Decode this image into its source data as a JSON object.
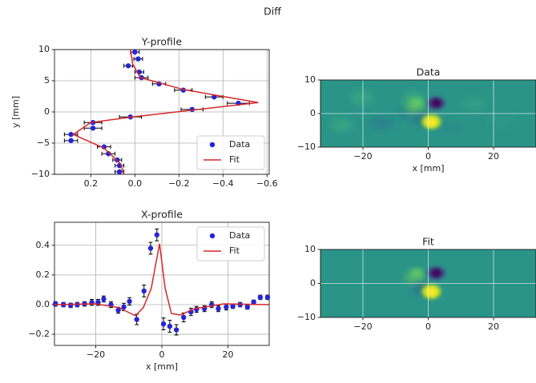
{
  "suptitle": "Diff",
  "chart_data": [
    {
      "type": "profile",
      "title": "Y-profile",
      "ylabel": "y [mm]",
      "xlim": [
        0.365,
        -0.61
      ],
      "xticks": [
        0.2,
        {
          "value": 0,
          "label": "0.0"
        },
        {
          "value": -0.2,
          "label": "−0.2"
        },
        {
          "value": -0.4,
          "label": "−0.4"
        },
        {
          "value": -0.6,
          "label": "−0.6"
        }
      ],
      "ylim": [
        -10,
        10
      ],
      "yticks": [
        {
          "value": -10,
          "label": "−10"
        },
        {
          "value": -5,
          "label": "−5"
        },
        0,
        5,
        10
      ],
      "grid": true,
      "legend": "lower right",
      "series": [
        {
          "name": "Data",
          "style": "errorbar",
          "color": "#2424d8",
          "y": [
            9.6,
            8.5,
            7.4,
            6.4,
            5.5,
            4.5,
            3.5,
            2.4,
            1.4,
            0.4,
            -0.8,
            -1.7,
            -2.6,
            -3.6,
            -4.6,
            -5.6,
            -6.7,
            -7.7,
            -8.6,
            -9.6
          ],
          "x": [
            0.0,
            -0.015,
            0.03,
            -0.02,
            -0.03,
            -0.11,
            -0.22,
            -0.36,
            -0.47,
            -0.26,
            0.02,
            0.19,
            0.19,
            0.29,
            0.29,
            0.14,
            0.12,
            0.08,
            0.07,
            0.07
          ],
          "xerr": [
            0.02,
            0.02,
            0.02,
            0.02,
            0.03,
            0.03,
            0.04,
            0.04,
            0.05,
            0.05,
            0.05,
            0.04,
            0.04,
            0.03,
            0.03,
            0.03,
            0.03,
            0.02,
            0.02,
            0.02
          ]
        },
        {
          "name": "Fit",
          "style": "line",
          "color": "#d62728",
          "y": [
            10,
            7.7,
            5.5,
            3.6,
            1.5,
            -0.8,
            -1.7,
            -3.6,
            -5.8,
            -8.3,
            -10
          ],
          "x": [
            0.02,
            0.01,
            -0.025,
            -0.22,
            -0.56,
            0.01,
            0.2,
            0.28,
            0.14,
            0.065,
            0.05
          ]
        }
      ]
    },
    {
      "type": "profile",
      "title": "X-profile",
      "xlabel": "x [mm]",
      "xlim": [
        -32.5,
        32.5
      ],
      "xticks": [
        {
          "value": -20,
          "label": "−20"
        },
        0,
        20
      ],
      "ylim": [
        -0.275,
        0.555
      ],
      "yticks": [
        {
          "value": -0.2,
          "label": "−0.2"
        },
        {
          "value": 0,
          "label": "0.0"
        },
        0.2,
        0.4
      ],
      "grid": true,
      "legend": "upper right",
      "series": [
        {
          "name": "Data",
          "style": "errorbar",
          "color": "#2424d8",
          "x": [
            -32.2,
            -29.8,
            -27.6,
            -25.6,
            -23.4,
            -21.2,
            -19.3,
            -17.6,
            -15.4,
            -13.2,
            -11.5,
            -9.8,
            -7.6,
            -5.4,
            -3.4,
            -1.5,
            0.5,
            2.4,
            4.4,
            6.6,
            8.8,
            10.5,
            12.9,
            15.1,
            17.1,
            19.5,
            21.5,
            23.7,
            25.9,
            27.8,
            29.8,
            32.0
          ],
          "y": [
            0.005,
            0.0,
            -0.005,
            0.0,
            0.005,
            0.015,
            0.015,
            0.038,
            0.0,
            -0.038,
            -0.016,
            0.022,
            -0.1,
            0.092,
            0.38,
            0.47,
            -0.13,
            -0.146,
            -0.17,
            -0.086,
            -0.049,
            -0.032,
            -0.027,
            0.0,
            -0.027,
            -0.016,
            -0.011,
            0.0,
            -0.016,
            0.016,
            0.049,
            0.049
          ],
          "yerr": [
            0.015,
            0.015,
            0.015,
            0.015,
            0.015,
            0.02,
            0.02,
            0.02,
            0.02,
            0.02,
            0.025,
            0.025,
            0.035,
            0.04,
            0.04,
            0.04,
            0.04,
            0.04,
            0.035,
            0.03,
            0.025,
            0.02,
            0.02,
            0.02,
            0.02,
            0.02,
            0.015,
            0.015,
            0.015,
            0.015,
            0.015,
            0.015
          ]
        },
        {
          "name": "Fit",
          "style": "line",
          "color": "#d62728",
          "x": [
            -32.5,
            -20,
            -13,
            -8,
            -5.6,
            -3.2,
            -0.7,
            1,
            2.9,
            5.6,
            10,
            18.8,
            32.5
          ],
          "y": [
            0.0,
            0.005,
            -0.02,
            -0.075,
            -0.02,
            0.11,
            0.41,
            0.11,
            -0.06,
            -0.07,
            -0.027,
            0.005,
            0.0
          ]
        }
      ]
    },
    {
      "type": "heatmap",
      "title": "Data",
      "xlabel": "x [mm]",
      "xlim": [
        -33,
        33
      ],
      "xticks": [
        {
          "value": -20,
          "label": "−20"
        },
        0,
        20
      ],
      "ylim": [
        -10,
        10
      ],
      "yticks": [
        {
          "value": -10,
          "label": "−10"
        },
        0,
        10
      ],
      "grid": true
    },
    {
      "type": "heatmap",
      "title": "Fit",
      "xlim": [
        -33,
        33
      ],
      "xticks": [
        {
          "value": -20,
          "label": "−20"
        },
        0,
        20
      ],
      "ylim": [
        -10,
        10
      ],
      "yticks": [
        {
          "value": -10,
          "label": "−10"
        },
        0,
        10
      ],
      "grid": true
    }
  ]
}
